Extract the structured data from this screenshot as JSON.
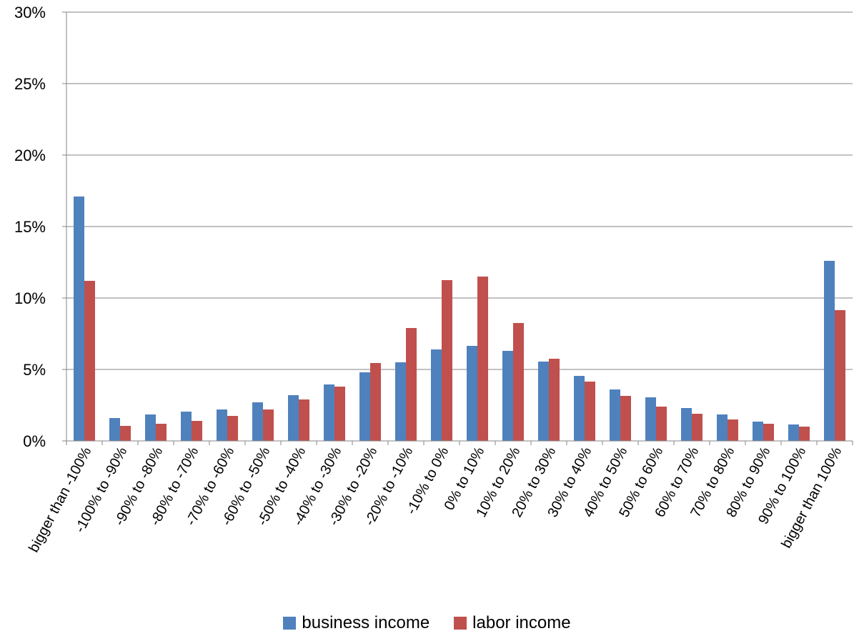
{
  "chart_data": {
    "type": "bar",
    "categories": [
      "bigger than -100%",
      "-100% to -90%",
      "-90% to -80%",
      "-80% to -70%",
      "-70% to -60%",
      "-60% to -50%",
      "-50% to -40%",
      "-40% to -30%",
      "-30% to -20%",
      "-20% to -10%",
      "-10% to 0%",
      "0% to 10%",
      "10% to 20%",
      "20% to 30%",
      "30% to 40%",
      "40% to 50%",
      "50% to 60%",
      "60% to 70%",
      "70% to 80%",
      "80% to 90%",
      "90% to 100%",
      "bigger than 100%"
    ],
    "series": [
      {
        "name": "business income",
        "color": "#4f81bd",
        "values": [
          17.1,
          1.6,
          1.85,
          2.05,
          2.2,
          2.7,
          3.2,
          3.95,
          4.8,
          5.5,
          6.4,
          6.65,
          6.3,
          5.55,
          4.55,
          3.6,
          3.05,
          2.3,
          1.85,
          1.35,
          1.15,
          12.6
        ]
      },
      {
        "name": "labor income",
        "color": "#c0504d",
        "values": [
          11.2,
          1.05,
          1.2,
          1.4,
          1.75,
          2.2,
          2.9,
          3.8,
          5.45,
          7.9,
          11.25,
          11.5,
          8.25,
          5.75,
          4.15,
          3.15,
          2.4,
          1.9,
          1.5,
          1.2,
          1.0,
          9.15
        ]
      }
    ],
    "yticks": [
      "0%",
      "5%",
      "10%",
      "15%",
      "20%",
      "25%",
      "30%"
    ],
    "ylim": [
      0,
      30
    ],
    "grid": true,
    "legend_position": "bottom"
  }
}
